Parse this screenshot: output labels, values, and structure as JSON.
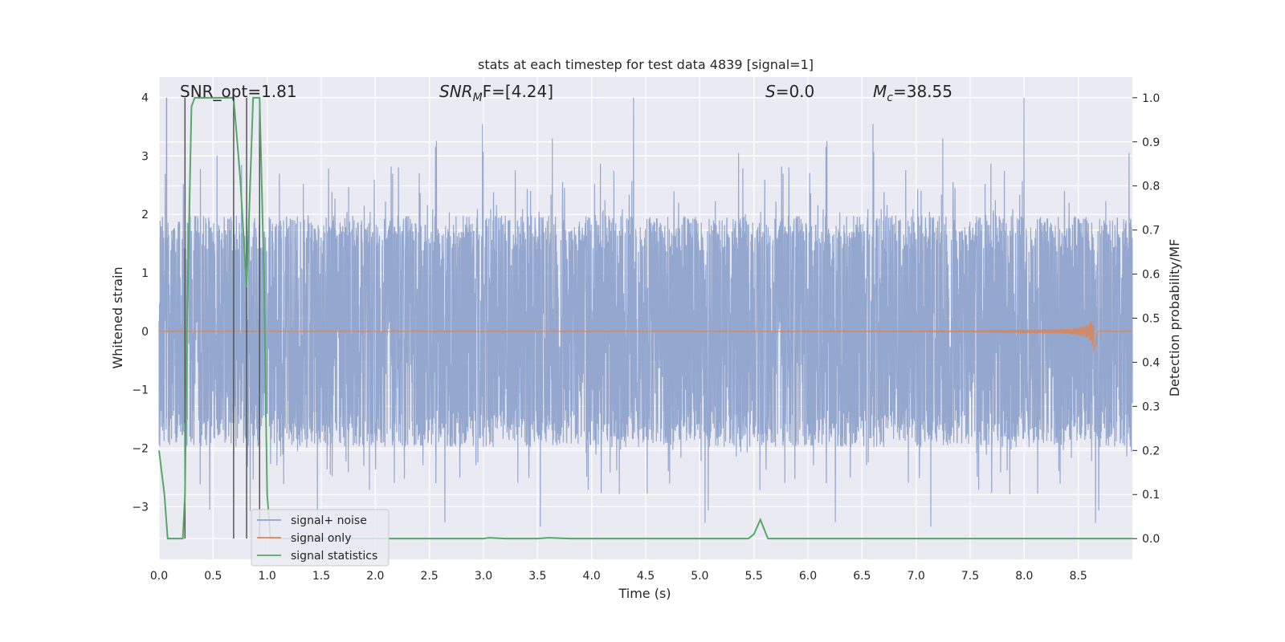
{
  "chart_data": {
    "type": "line",
    "title": "stats at each timestep for test data 4839 [signal=1]",
    "xlabel": "Time (s)",
    "ylabel": "Whitened strain",
    "y2label": "Detection probability/MF",
    "xlim": [
      0.0,
      9.0
    ],
    "ylim": [
      -3.9,
      4.35
    ],
    "y2lim": [
      -0.047,
      1.047
    ],
    "x_ticks": [
      "0.0",
      "0.5",
      "1.0",
      "1.5",
      "2.0",
      "2.5",
      "3.0",
      "3.5",
      "4.0",
      "4.5",
      "5.0",
      "5.5",
      "6.0",
      "6.5",
      "7.0",
      "7.5",
      "8.0",
      "8.5"
    ],
    "y_ticks": [
      "4",
      "3",
      "2",
      "1",
      "0",
      "−1",
      "−2",
      "−3"
    ],
    "y2_ticks": [
      "1.0",
      "0.9",
      "0.8",
      "0.7",
      "0.6",
      "0.5",
      "0.4",
      "0.3",
      "0.2",
      "0.1",
      "0.0"
    ],
    "grid": true,
    "legend_position": "lower-left",
    "annotations": {
      "snr_opt": "SNR_opt=1.81",
      "snr_mf_main": "SNR",
      "snr_mf_sub": "M",
      "snr_mf_rest": "F=[4.24]",
      "s_sym": "S",
      "s_rest": "=0.0",
      "mc_main": "M",
      "mc_sub": "c",
      "mc_rest": "=38.55"
    },
    "series": [
      {
        "name": "signal+ noise",
        "color": "#8fa3cc",
        "description_values": "noise band, envelope roughly ±1.8 with spikes to ±3.5",
        "envelope": {
          "typical": 1.8,
          "max_positive": 4.0,
          "max_negative": -3.6
        }
      },
      {
        "name": "signal only",
        "color": "#dd8452",
        "chirp": {
          "start_x": 5.0,
          "peak_x": 8.63,
          "peak_amplitude": 0.45
        }
      },
      {
        "name": "signal statistics",
        "color": "#55a868",
        "x": [
          0.0,
          0.05,
          0.08,
          0.15,
          0.22,
          0.24,
          0.26,
          0.3,
          0.33,
          0.5,
          0.69,
          0.75,
          0.81,
          0.87,
          0.93,
          0.97,
          1.0,
          1.03,
          1.2,
          2.0,
          3.0,
          3.05,
          3.2,
          3.5,
          3.6,
          3.8,
          4.5,
          5.0,
          5.45,
          5.5,
          5.56,
          5.63,
          5.7,
          6.0,
          7.0,
          8.0,
          9.0
        ],
        "y": [
          0.2,
          0.1,
          0.0,
          0.0,
          0.0,
          0.1,
          0.5,
          0.98,
          1.0,
          1.0,
          1.0,
          0.82,
          0.57,
          1.0,
          1.0,
          0.6,
          0.1,
          0.0,
          0.0,
          0.0,
          0.0,
          0.002,
          0.0,
          0.0,
          0.002,
          0.0,
          0.0,
          0.0,
          0.0,
          0.01,
          0.043,
          0.0,
          0.0,
          0.0,
          0.0,
          0.0,
          0.0
        ]
      }
    ],
    "vertical_markers": {
      "color": "#555555",
      "x": [
        0.24,
        0.69,
        0.81,
        0.93
      ]
    }
  }
}
